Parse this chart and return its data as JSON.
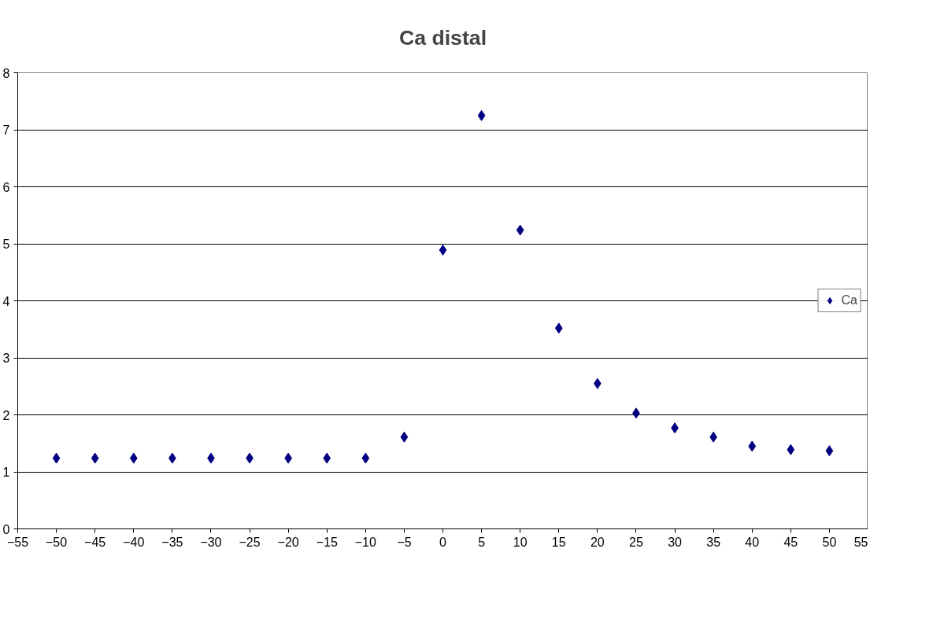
{
  "chart_data": {
    "type": "scatter",
    "title": "Ca distal",
    "x": [
      -50,
      -45,
      -40,
      -35,
      -30,
      -25,
      -20,
      -15,
      -10,
      -5,
      0,
      5,
      10,
      15,
      20,
      25,
      30,
      35,
      40,
      45,
      50
    ],
    "series": [
      {
        "name": "Ca",
        "color": "#000080",
        "values": [
          1.24,
          1.24,
          1.24,
          1.24,
          1.24,
          1.24,
          1.24,
          1.24,
          1.24,
          1.61,
          4.89,
          7.25,
          5.24,
          3.52,
          2.55,
          2.03,
          1.77,
          1.61,
          1.45,
          1.39,
          1.37
        ]
      }
    ],
    "xlim": [
      -55,
      55
    ],
    "xticks": [
      -55,
      -50,
      -45,
      -40,
      -35,
      -30,
      -25,
      -20,
      -15,
      -10,
      -5,
      0,
      5,
      10,
      15,
      20,
      25,
      30,
      35,
      40,
      45,
      50,
      55
    ],
    "ylim": [
      0,
      8
    ],
    "yticks": [
      0,
      1,
      2,
      3,
      4,
      5,
      6,
      7,
      8
    ],
    "grid": "y",
    "legend": "right",
    "marker": "diamond"
  }
}
